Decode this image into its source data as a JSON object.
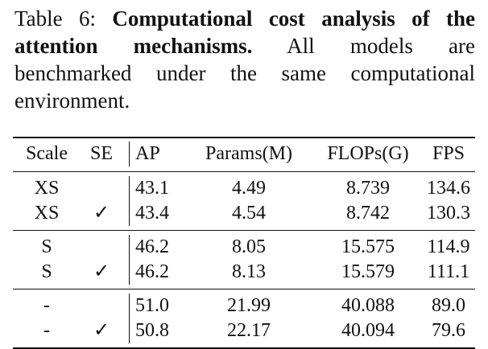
{
  "caption": {
    "label": "Table 6:",
    "bold": "Computational cost analysis of the attention mechanisms.",
    "rest": "All models are benchmarked under the same computational environment."
  },
  "table": {
    "headers": [
      "Scale",
      "SE",
      "AP",
      "Params(M)",
      "FLOPs(G)",
      "FPS"
    ],
    "groups": [
      {
        "rows": [
          {
            "scale": "XS",
            "se": "",
            "ap": "43.1",
            "params": "4.49",
            "flops": "8.739",
            "fps": "134.6"
          },
          {
            "scale": "XS",
            "se": "✓",
            "ap": "43.4",
            "params": "4.54",
            "flops": "8.742",
            "fps": "130.3"
          }
        ]
      },
      {
        "rows": [
          {
            "scale": "S",
            "se": "",
            "ap": "46.2",
            "params": "8.05",
            "flops": "15.575",
            "fps": "114.9"
          },
          {
            "scale": "S",
            "se": "✓",
            "ap": "46.2",
            "params": "8.13",
            "flops": "15.579",
            "fps": "111.1"
          }
        ]
      },
      {
        "rows": [
          {
            "scale": "-",
            "se": "",
            "ap": "51.0",
            "params": "21.99",
            "flops": "40.088",
            "fps": "89.0"
          },
          {
            "scale": "-",
            "se": "✓",
            "ap": "50.8",
            "params": "22.17",
            "flops": "40.094",
            "fps": "79.6"
          }
        ]
      }
    ]
  }
}
